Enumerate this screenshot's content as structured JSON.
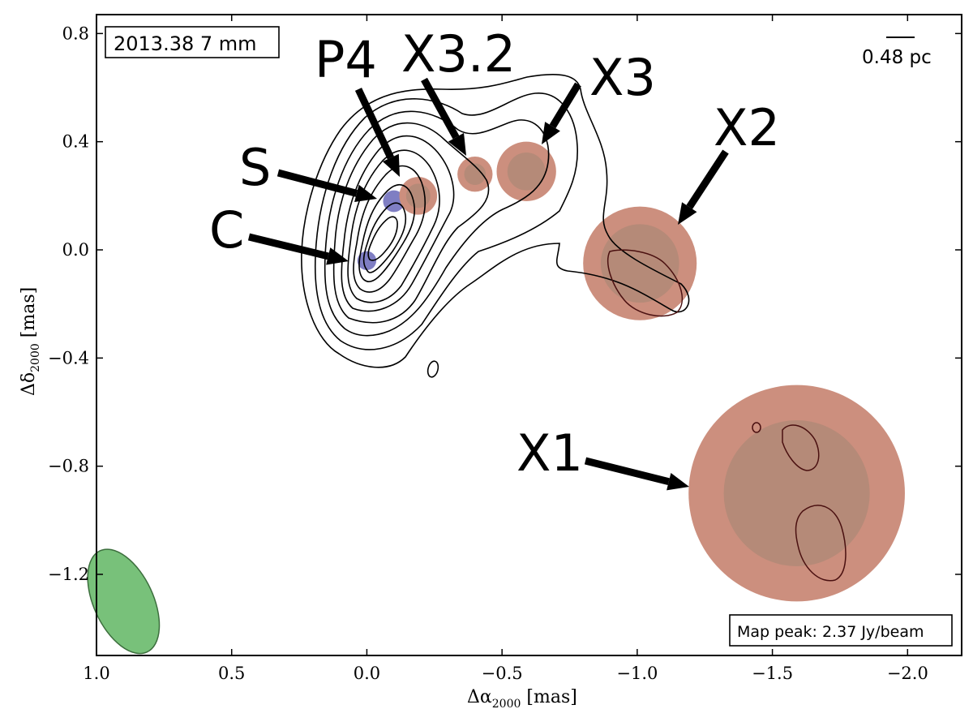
{
  "chart_data": {
    "type": "scatter",
    "title": "",
    "epoch_label": "2013.38  7 mm",
    "scale_bar_label": "0.48 pc",
    "peak_label": "Map peak: 2.37 Jy/beam",
    "xlabel": "Δα",
    "xlabel_sub": "2000",
    "xlabel_unit": " [mas]",
    "ylabel": "Δδ",
    "ylabel_sub": "2000",
    "ylabel_unit": " [mas]",
    "xlim": [
      1.0,
      -2.2
    ],
    "ylim": [
      -1.5,
      0.87
    ],
    "x_ticks": [
      {
        "value": 1.0,
        "label": "1.0"
      },
      {
        "value": 0.5,
        "label": "0.5"
      },
      {
        "value": 0.0,
        "label": "0.0"
      },
      {
        "value": -0.5,
        "label": "−0.5"
      },
      {
        "value": -1.0,
        "label": "−1.0"
      },
      {
        "value": -1.5,
        "label": "−1.5"
      },
      {
        "value": -2.0,
        "label": "−2.0"
      }
    ],
    "y_ticks": [
      {
        "value": 0.8,
        "label": "0.8"
      },
      {
        "value": 0.4,
        "label": "0.4"
      },
      {
        "value": 0.0,
        "label": "0.0"
      },
      {
        "value": -0.4,
        "label": "−0.4"
      },
      {
        "value": -0.8,
        "label": "−0.8"
      },
      {
        "value": -1.2,
        "label": "−1.2"
      }
    ],
    "components": [
      {
        "name": "C",
        "x": 0.0,
        "y": -0.04,
        "outer_r": 0.035,
        "inner_r": 0.0,
        "kind": "core"
      },
      {
        "name": "S",
        "x": -0.1,
        "y": 0.18,
        "outer_r": 0.04,
        "inner_r": 0.0,
        "kind": "core"
      },
      {
        "name": "P4",
        "x": -0.19,
        "y": 0.2,
        "outer_r": 0.07,
        "inner_r": 0.045,
        "kind": "jet"
      },
      {
        "name": "X3.2",
        "x": -0.4,
        "y": 0.28,
        "outer_r": 0.065,
        "inner_r": 0.04,
        "kind": "jet"
      },
      {
        "name": "X3",
        "x": -0.59,
        "y": 0.29,
        "outer_r": 0.11,
        "inner_r": 0.07,
        "kind": "jet"
      },
      {
        "name": "X2",
        "x": -1.01,
        "y": -0.05,
        "outer_r": 0.21,
        "inner_r": 0.145,
        "kind": "jet"
      },
      {
        "name": "X1",
        "x": -1.59,
        "y": -0.9,
        "outer_r": 0.4,
        "inner_r": 0.27,
        "kind": "jet"
      }
    ],
    "beam": {
      "x": 0.9,
      "y": -1.3,
      "major": 0.28,
      "minor": 0.11,
      "pa_deg": -25
    },
    "colors": {
      "jet_outer": "#cc8f7e",
      "jet_inner": "#b58a78",
      "core": "#7f7ec3",
      "beam": "#78c17a",
      "contour": "#000000",
      "contour_faint": "#4a1010"
    }
  }
}
